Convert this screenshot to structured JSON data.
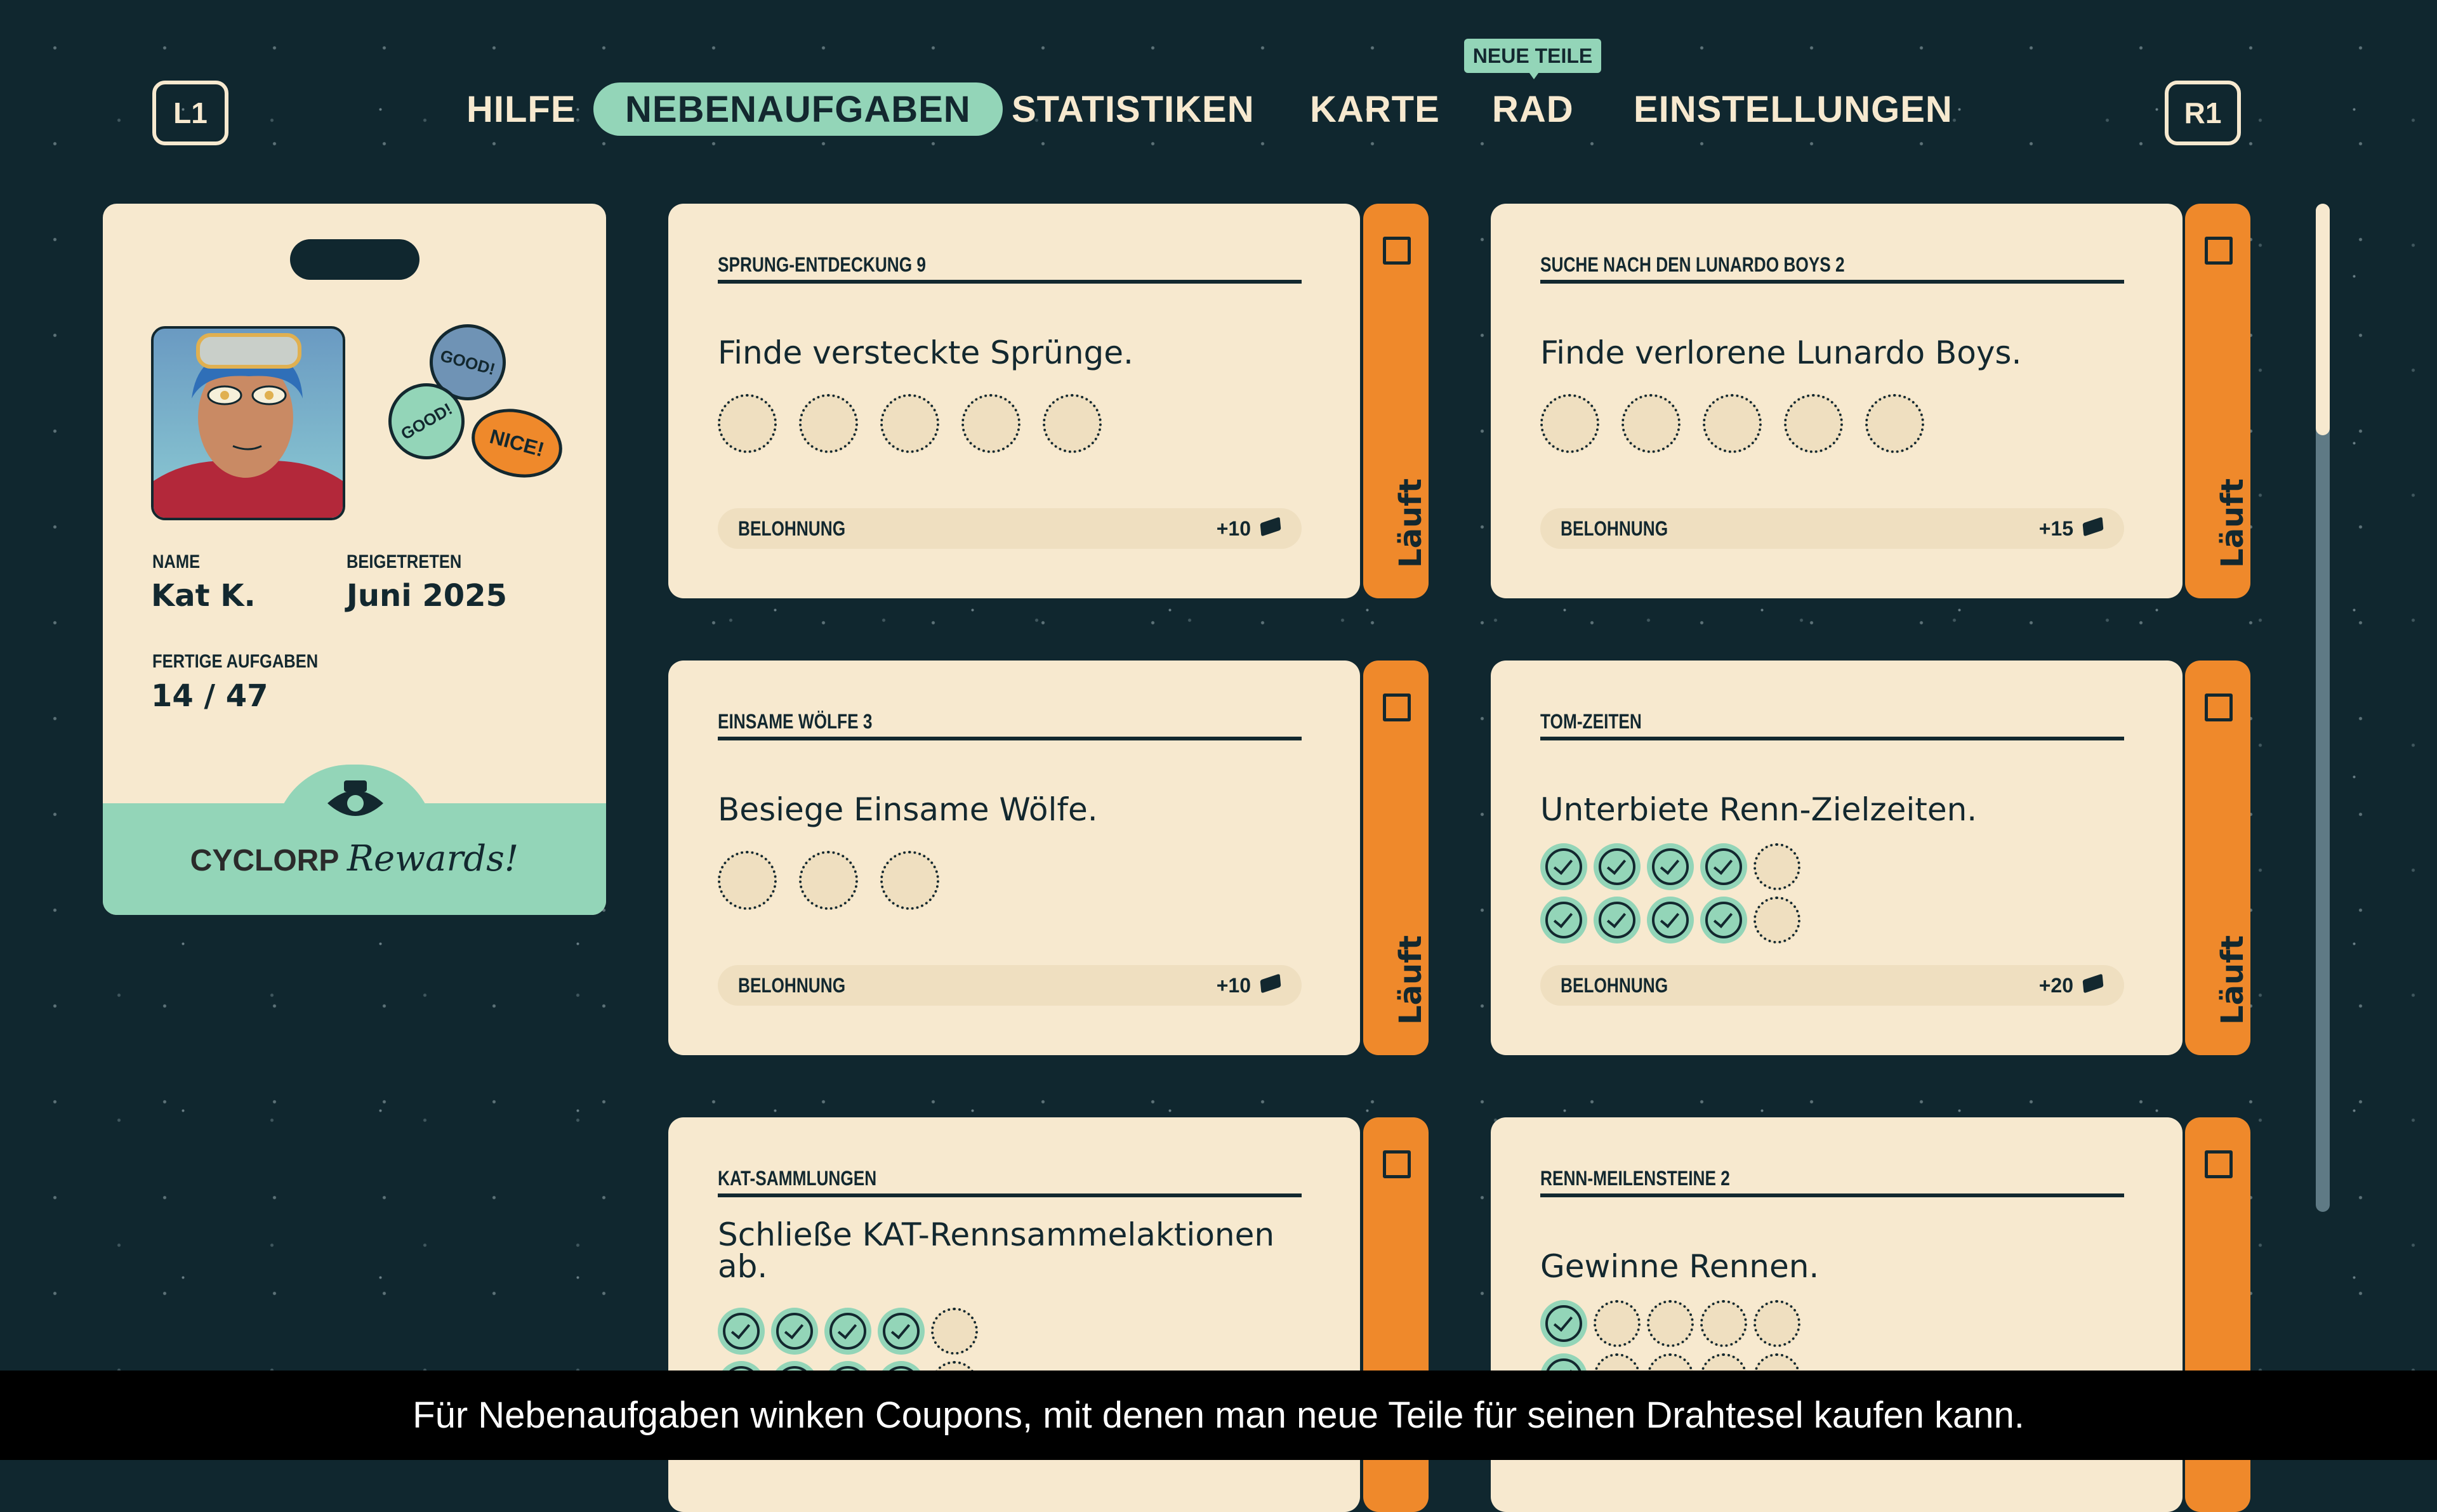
{
  "colors": {
    "background": "#10272f",
    "card": "#f7e9cf",
    "accent_mint": "#93d5b8",
    "status_orange": "#ef892b"
  },
  "shoulder": {
    "left": "L1",
    "right": "R1"
  },
  "nav": {
    "items": [
      "HILFE",
      "NEBENAUFGABEN",
      "STATISTIKEN",
      "KARTE",
      "RAD",
      "EINSTELLUNGEN"
    ],
    "active": "NEBENAUFGABEN",
    "badge": "NEUE TEILE"
  },
  "profile": {
    "name_label": "NAME",
    "name": "Kat K.",
    "joined_label": "BEIGETRETEN",
    "joined": "Juni 2025",
    "done_label": "FERTIGE AUFGABEN",
    "done": "14 / 47",
    "stickers": [
      "GOOD!",
      "GOOD!",
      "NICE!"
    ],
    "brand": "CYCLORP",
    "brand_script": "Rewards!"
  },
  "reward_label": "BELOHNUNG",
  "quests": [
    {
      "title": "SPRUNG-ENTDECKUNG 9",
      "desc": "Finde versteckte Sprünge.",
      "progress": [
        [
          0,
          5
        ]
      ],
      "reward": "+10",
      "status": "Läuft"
    },
    {
      "title": "SUCHE NACH DEN LUNARDO BOYS 2",
      "desc": "Finde verlorene Lunardo Boys.",
      "progress": [
        [
          0,
          5
        ]
      ],
      "reward": "+15",
      "status": "Läuft"
    },
    {
      "title": "EINSAME WÖLFE 3",
      "desc": "Besiege Einsame Wölfe.",
      "progress": [
        [
          0,
          3
        ]
      ],
      "reward": "+10",
      "status": "Läuft"
    },
    {
      "title": "TOM-ZEITEN",
      "desc": "Unterbiete Renn-Zielzeiten.",
      "progress": [
        [
          4,
          5
        ],
        [
          4,
          5
        ]
      ],
      "reward": "+20",
      "status": "Läuft"
    },
    {
      "title": "KAT-SAMMLUNGEN",
      "desc": "Schließe KAT-Rennsammelaktionen ab.",
      "progress": [
        [
          4,
          5
        ],
        [
          4,
          5
        ]
      ],
      "reward": "",
      "status": ""
    },
    {
      "title": "RENN-MEILENSTEINE 2",
      "desc": "Gewinne Rennen.",
      "progress": [
        [
          1,
          5
        ],
        [
          1,
          5
        ]
      ],
      "reward": "",
      "status": ""
    }
  ],
  "caption": "Für Nebenaufgaben winken Coupons, mit denen man neue Teile für seinen Drahtesel kaufen kann."
}
